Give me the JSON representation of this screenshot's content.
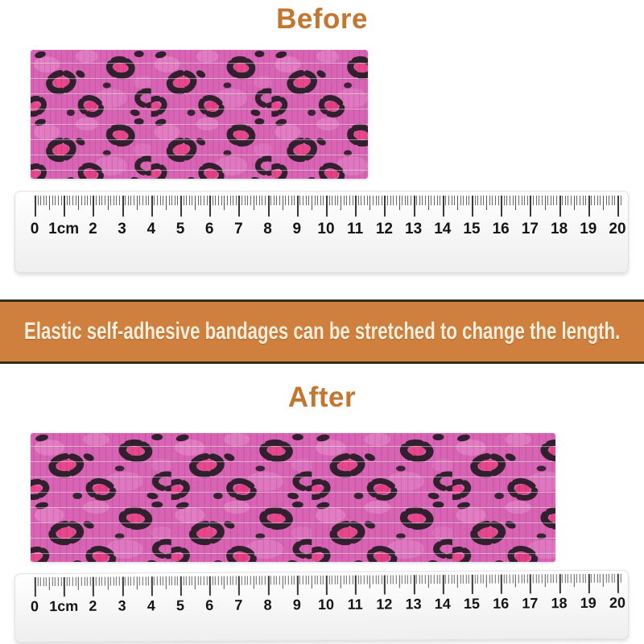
{
  "sections": {
    "before": {
      "title": "Before"
    },
    "after": {
      "title": "After"
    }
  },
  "banner": {
    "text": "Elastic self-adhesive bandages can be stretched to change the length.",
    "bg_color": "#d0803e",
    "text_color": "#f7efdb"
  },
  "titles": {
    "color": "#c1772f"
  },
  "ruler": {
    "numbers": [
      "0",
      "1cm",
      "2",
      "3",
      "4",
      "5",
      "6",
      "7",
      "8",
      "9",
      "10",
      "11",
      "12",
      "13",
      "14",
      "15",
      "16",
      "17",
      "18",
      "19",
      "20"
    ],
    "unit_label": "1cm",
    "range_cm": 20
  },
  "bandage": {
    "pattern_name": "pink-leopard-print",
    "base_color": "#d963b4",
    "spot_color": "#33202f",
    "accent_color": "#e8478d",
    "highlight_color": "#ea90d0"
  }
}
